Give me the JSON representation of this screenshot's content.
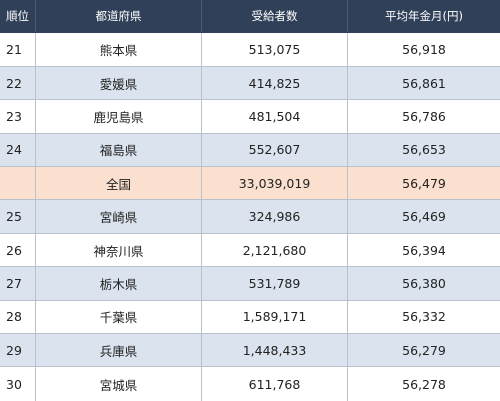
{
  "table": {
    "headers": {
      "rank": "順位",
      "prefecture": "都道府県",
      "recipients": "受給者数",
      "avg_monthly": "平均年金月(円)"
    },
    "rows": [
      {
        "rank": "21",
        "prefecture": "熊本県",
        "recipients": "513,075",
        "avg_monthly": "56,918",
        "style": "white"
      },
      {
        "rank": "22",
        "prefecture": "愛媛県",
        "recipients": "414,825",
        "avg_monthly": "56,861",
        "style": "blue"
      },
      {
        "rank": "23",
        "prefecture": "鹿児島県",
        "recipients": "481,504",
        "avg_monthly": "56,786",
        "style": "white"
      },
      {
        "rank": "24",
        "prefecture": "福島県",
        "recipients": "552,607",
        "avg_monthly": "56,653",
        "style": "blue"
      },
      {
        "rank": "",
        "prefecture": "全国",
        "recipients": "33,039,019",
        "avg_monthly": "56,479",
        "style": "total"
      },
      {
        "rank": "25",
        "prefecture": "宮崎県",
        "recipients": "324,986",
        "avg_monthly": "56,469",
        "style": "blue"
      },
      {
        "rank": "26",
        "prefecture": "神奈川県",
        "recipients": "2,121,680",
        "avg_monthly": "56,394",
        "style": "white"
      },
      {
        "rank": "27",
        "prefecture": "栃木県",
        "recipients": "531,789",
        "avg_monthly": "56,380",
        "style": "blue"
      },
      {
        "rank": "28",
        "prefecture": "千葉県",
        "recipients": "1,589,171",
        "avg_monthly": "56,332",
        "style": "white"
      },
      {
        "rank": "29",
        "prefecture": "兵庫県",
        "recipients": "1,448,433",
        "avg_monthly": "56,279",
        "style": "blue"
      },
      {
        "rank": "30",
        "prefecture": "宮城県",
        "recipients": "611,768",
        "avg_monthly": "56,278",
        "style": "white"
      }
    ]
  },
  "colors": {
    "header_bg": "#2f4058",
    "row_blue": "#dbe3ee",
    "row_total": "#fbe0cf"
  }
}
